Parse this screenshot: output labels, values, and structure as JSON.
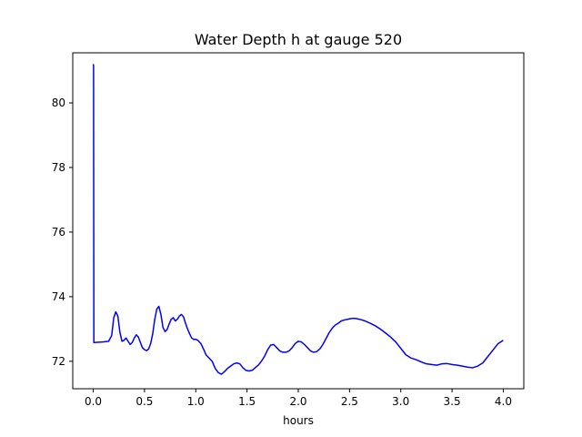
{
  "chart_data": {
    "type": "line",
    "title": "Water Depth h at gauge 520",
    "xlabel": "hours",
    "ylabel": "",
    "xlim": [
      -0.2,
      4.2
    ],
    "ylim": [
      71.15,
      81.55
    ],
    "xticks": [
      0.0,
      0.5,
      1.0,
      1.5,
      2.0,
      2.5,
      3.0,
      3.5,
      4.0
    ],
    "xtick_labels": [
      "0.0",
      "0.5",
      "1.0",
      "1.5",
      "2.0",
      "2.5",
      "3.0",
      "3.5",
      "4.0"
    ],
    "yticks": [
      72,
      74,
      76,
      78,
      80
    ],
    "ytick_labels": [
      "72",
      "74",
      "76",
      "78",
      "80"
    ],
    "grid": false,
    "line_color": "#0000ff",
    "series": [
      {
        "x": [
          0.0,
          0.003,
          0.006,
          0.1,
          0.15,
          0.18,
          0.2,
          0.22,
          0.24,
          0.26,
          0.28,
          0.3,
          0.32,
          0.34,
          0.36,
          0.38,
          0.4,
          0.42,
          0.44,
          0.46,
          0.48,
          0.5,
          0.52,
          0.54,
          0.56,
          0.58,
          0.6,
          0.62,
          0.64,
          0.66,
          0.68,
          0.7,
          0.72,
          0.74,
          0.76,
          0.78,
          0.8,
          0.82,
          0.84,
          0.86,
          0.88,
          0.9,
          0.92,
          0.94,
          0.96,
          0.98,
          1.0,
          1.02,
          1.05,
          1.08,
          1.1,
          1.13,
          1.16,
          1.19,
          1.22,
          1.25,
          1.28,
          1.31,
          1.34,
          1.37,
          1.4,
          1.43,
          1.46,
          1.49,
          1.52,
          1.55,
          1.58,
          1.61,
          1.64,
          1.67,
          1.7,
          1.73,
          1.76,
          1.79,
          1.82,
          1.85,
          1.88,
          1.91,
          1.94,
          1.97,
          2.0,
          2.03,
          2.06,
          2.09,
          2.12,
          2.15,
          2.18,
          2.21,
          2.24,
          2.27,
          2.3,
          2.33,
          2.36,
          2.39,
          2.42,
          2.45,
          2.48,
          2.51,
          2.54,
          2.57,
          2.6,
          2.65,
          2.7,
          2.75,
          2.8,
          2.85,
          2.9,
          2.95,
          3.0,
          3.05,
          3.1,
          3.15,
          3.2,
          3.25,
          3.3,
          3.35,
          3.4,
          3.45,
          3.5,
          3.55,
          3.6,
          3.65,
          3.7,
          3.75,
          3.8,
          3.85,
          3.9,
          3.95,
          4.0
        ],
        "y": [
          81.2,
          81.15,
          72.58,
          72.6,
          72.62,
          72.8,
          73.35,
          73.53,
          73.4,
          72.9,
          72.62,
          72.65,
          72.72,
          72.62,
          72.52,
          72.58,
          72.72,
          72.82,
          72.75,
          72.58,
          72.42,
          72.36,
          72.33,
          72.38,
          72.55,
          72.85,
          73.3,
          73.62,
          73.7,
          73.45,
          73.05,
          72.92,
          72.98,
          73.15,
          73.3,
          73.35,
          73.25,
          73.3,
          73.4,
          73.45,
          73.38,
          73.18,
          73.0,
          72.85,
          72.72,
          72.68,
          72.68,
          72.65,
          72.55,
          72.35,
          72.2,
          72.1,
          72.0,
          71.78,
          71.65,
          71.6,
          71.68,
          71.78,
          71.85,
          71.92,
          71.95,
          71.92,
          71.8,
          71.72,
          71.7,
          71.72,
          71.8,
          71.88,
          72.0,
          72.15,
          72.35,
          72.5,
          72.52,
          72.42,
          72.32,
          72.28,
          72.28,
          72.32,
          72.42,
          72.55,
          72.62,
          72.6,
          72.52,
          72.42,
          72.32,
          72.28,
          72.3,
          72.38,
          72.52,
          72.7,
          72.88,
          73.02,
          73.12,
          73.18,
          73.25,
          73.28,
          73.3,
          73.32,
          73.33,
          73.32,
          73.3,
          73.25,
          73.18,
          73.1,
          73.0,
          72.88,
          72.75,
          72.6,
          72.4,
          72.2,
          72.1,
          72.05,
          71.98,
          71.92,
          71.9,
          71.88,
          71.92,
          71.93,
          71.9,
          71.88,
          71.85,
          71.82,
          71.8,
          71.85,
          71.95,
          72.15,
          72.35,
          72.55,
          72.65
        ]
      }
    ]
  }
}
